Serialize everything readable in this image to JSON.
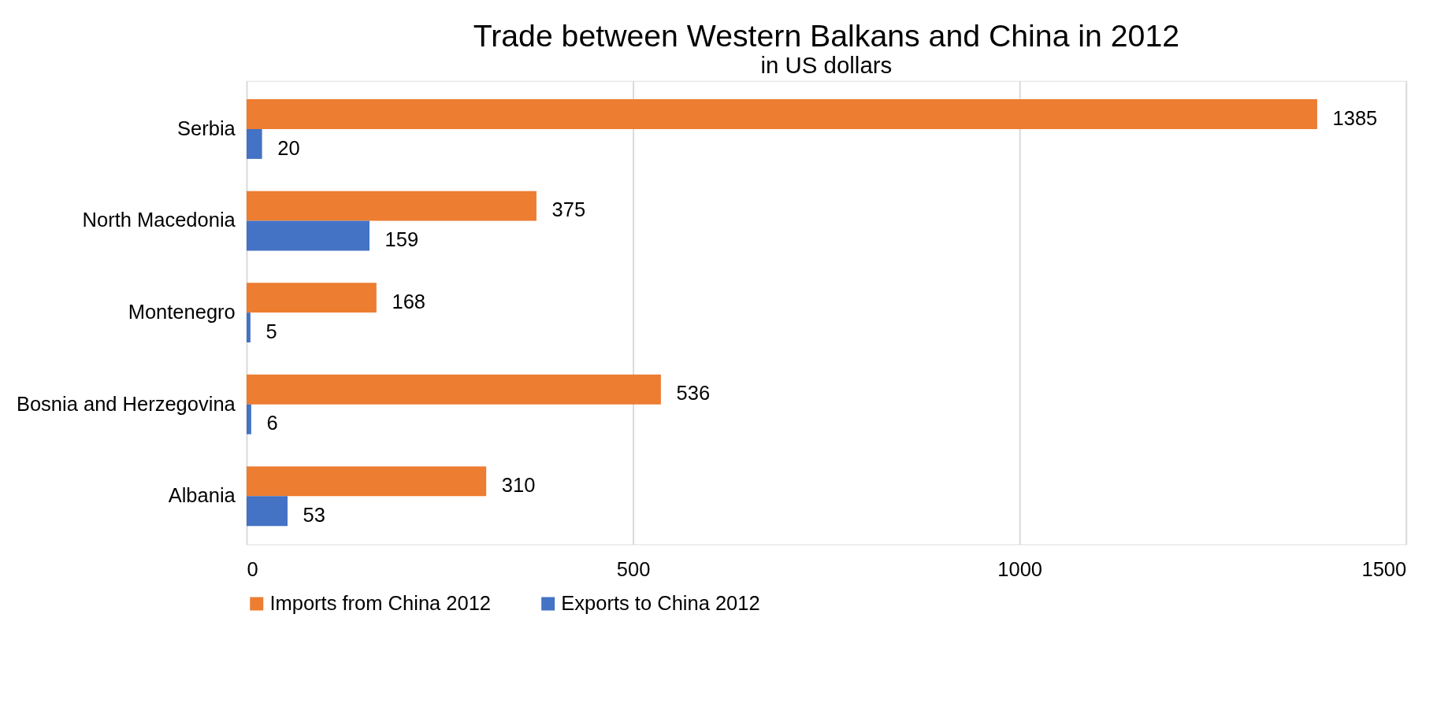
{
  "chart_data": {
    "type": "bar",
    "orientation": "horizontal",
    "title": "Trade between Western Balkans and China in 2012",
    "subtitle": "in US dollars",
    "categories": [
      "Serbia",
      "North Macedonia",
      "Montenegro",
      "Bosnia and Herzegovina",
      "Albania"
    ],
    "series": [
      {
        "name": "Imports from China 2012",
        "color": "#ed7d31",
        "values": [
          1385,
          375,
          168,
          536,
          310
        ]
      },
      {
        "name": "Exports to China 2012",
        "color": "#4472c4",
        "values": [
          20,
          159,
          5,
          6,
          53
        ]
      }
    ],
    "xlim": [
      0,
      1500
    ],
    "xticks": [
      0,
      500,
      1000,
      1500
    ],
    "grid": "x",
    "legend": "bottom",
    "data_labels": true
  }
}
